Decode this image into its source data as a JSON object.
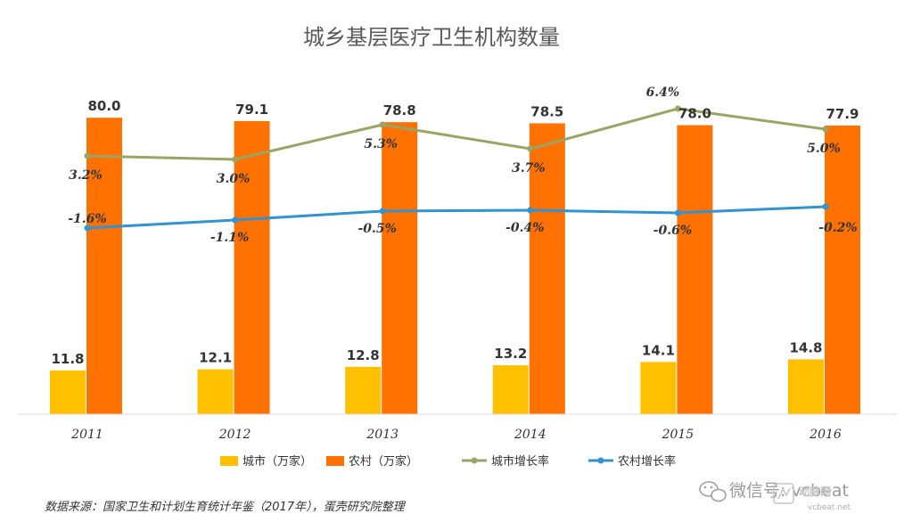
{
  "chart_data": {
    "type": "bar",
    "title": "城乡基层医疗卫生机构数量",
    "categories": [
      "2011",
      "2012",
      "2013",
      "2014",
      "2015",
      "2016"
    ],
    "series": [
      {
        "name": "城市（万家）",
        "kind": "bar",
        "color": "#FFC000",
        "values": [
          11.8,
          12.1,
          12.8,
          13.2,
          14.1,
          14.8
        ],
        "labels": [
          "11.8",
          "12.1",
          "12.8",
          "13.2",
          "14.1",
          "14.8"
        ]
      },
      {
        "name": "农村（万家）",
        "kind": "bar",
        "color": "#FF7100",
        "values": [
          80.0,
          79.1,
          78.8,
          78.5,
          78.0,
          77.9
        ],
        "labels": [
          "80.0",
          "79.1",
          "78.8",
          "78.5",
          "78.0",
          "77.9"
        ]
      },
      {
        "name": "城市增长率",
        "kind": "line",
        "color": "#9BA365",
        "values": [
          3.2,
          3.0,
          5.3,
          3.7,
          6.4,
          5.0
        ],
        "labels": [
          "3.2%",
          "3.0%",
          "5.3%",
          "3.7%",
          "6.4%",
          "5.0%"
        ]
      },
      {
        "name": "农村增长率",
        "kind": "line",
        "color": "#3193D0",
        "values": [
          -1.6,
          -1.1,
          -0.5,
          -0.4,
          -0.6,
          -0.2
        ],
        "labels": [
          "-1.6%",
          "-1.1%",
          "-0.5%",
          "-0.4%",
          "-0.6%",
          "-0.2%"
        ]
      }
    ],
    "ylim_bars": [
      0,
      85
    ],
    "ylim_rate": [
      -2.0,
      8.0
    ],
    "legend_position": "bottom",
    "grid": false
  },
  "source_note": "数据来源：国家卫生和计划生育统计年鉴（2017年），蛋壳研究院整理",
  "watermark": {
    "wechat_text": "微信号: vcbeat",
    "logo_text": "动脉网",
    "site_text": "vcbeat.net"
  }
}
